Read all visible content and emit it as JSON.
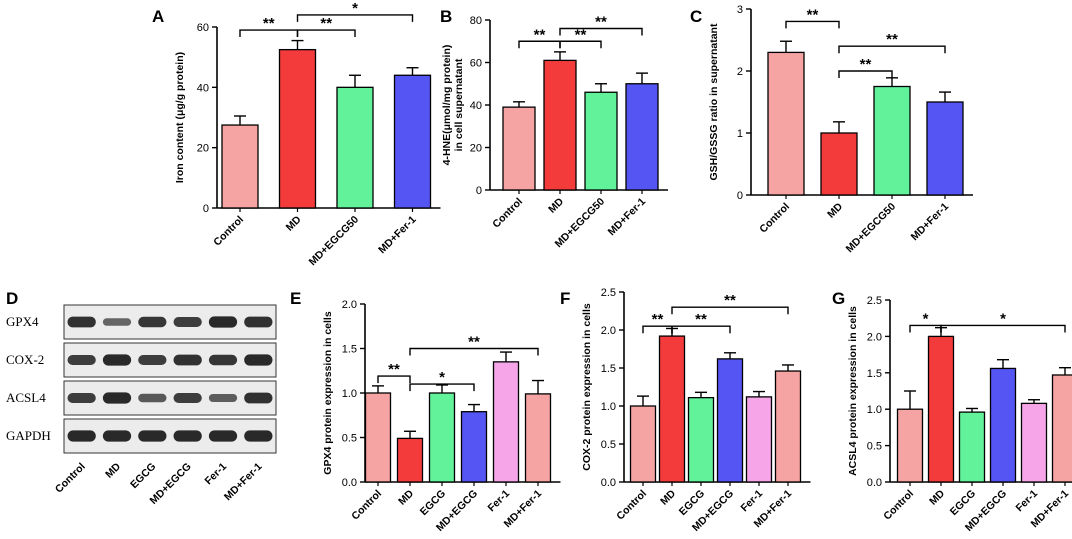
{
  "colors": {
    "Control": "#f6a3a3",
    "MD": "#f43b3b",
    "EGCG": "#62f29a",
    "MD+EGCG50": "#62f29a",
    "MD+EGCG": "#5455f2",
    "Fer-1": "#f6a6e8",
    "MD+Fer-1": "#5455f2",
    "MD+Fer-1 (6-group)": "#f6a3a3"
  },
  "chart_data": [
    {
      "id": "A",
      "type": "bar",
      "panel_label": "A",
      "categories": [
        "Control",
        "MD",
        "MD+EGCG50",
        "MD+Fer-1"
      ],
      "values": [
        27.5,
        52.5,
        40,
        44
      ],
      "errors": [
        3,
        3,
        4,
        2.5
      ],
      "bar_colors": [
        "#f6a3a3",
        "#f43b3b",
        "#62f29a",
        "#5455f2"
      ],
      "ylabel": "Iron content (μg/g protein)",
      "ylim": [
        0,
        60
      ],
      "yticks": [
        0,
        20,
        40,
        60
      ],
      "significance": [
        {
          "from": 0,
          "to": 1,
          "label": "**",
          "y": 59
        },
        {
          "from": 1,
          "to": 2,
          "label": "**",
          "y": 59
        },
        {
          "from": 1,
          "to": 3,
          "label": "*",
          "y": 64
        }
      ]
    },
    {
      "id": "B",
      "type": "bar",
      "panel_label": "B",
      "categories": [
        "Control",
        "MD",
        "MD+EGCG50",
        "MD+Fer-1"
      ],
      "values": [
        39,
        61,
        46,
        50
      ],
      "errors": [
        2.5,
        4,
        4,
        5
      ],
      "bar_colors": [
        "#f6a3a3",
        "#f43b3b",
        "#62f29a",
        "#5455f2"
      ],
      "ylabel": "4-HNE(μmol/mg protein)\nin cell supernatant",
      "ylim": [
        0,
        80
      ],
      "yticks": [
        0,
        20,
        40,
        60,
        80
      ],
      "significance": [
        {
          "from": 0,
          "to": 1,
          "label": "**",
          "y": 70
        },
        {
          "from": 1,
          "to": 2,
          "label": "**",
          "y": 70
        },
        {
          "from": 1,
          "to": 3,
          "label": "**",
          "y": 76
        }
      ]
    },
    {
      "id": "C",
      "type": "bar",
      "panel_label": "C",
      "categories": [
        "Control",
        "MD",
        "MD+EGCG50",
        "MD+Fer-1"
      ],
      "values": [
        2.3,
        1.0,
        1.75,
        1.5
      ],
      "errors": [
        0.18,
        0.18,
        0.14,
        0.16
      ],
      "bar_colors": [
        "#f6a3a3",
        "#f43b3b",
        "#62f29a",
        "#5455f2"
      ],
      "ylabel": "GSH/GSSG ratio in supernatant",
      "ylim": [
        0,
        3
      ],
      "yticks": [
        0,
        1,
        2,
        3
      ],
      "significance": [
        {
          "from": 0,
          "to": 1,
          "label": "**",
          "y": 2.8
        },
        {
          "from": 1,
          "to": 2,
          "label": "**",
          "y": 2.0
        },
        {
          "from": 1,
          "to": 3,
          "label": "**",
          "y": 2.4
        }
      ]
    },
    {
      "id": "E",
      "type": "bar",
      "panel_label": "E",
      "categories": [
        "Control",
        "MD",
        "EGCG",
        "MD+EGCG",
        "Fer-1",
        "MD+Fer-1"
      ],
      "values": [
        1.0,
        0.49,
        1.0,
        0.79,
        1.35,
        0.99
      ],
      "errors": [
        0.08,
        0.08,
        0.09,
        0.08,
        0.11,
        0.15
      ],
      "bar_colors": [
        "#f6a3a3",
        "#f43b3b",
        "#62f29a",
        "#5455f2",
        "#f6a6e8",
        "#f6a3a3"
      ],
      "ylabel": "GPX4 protein expression in cells",
      "ylim": [
        0,
        2.0
      ],
      "yticks": [
        0.0,
        0.5,
        1.0,
        1.5,
        2.0
      ],
      "tick_format": 1,
      "significance": [
        {
          "from": 0,
          "to": 1,
          "label": "**",
          "y": 1.19
        },
        {
          "from": 1,
          "to": 3,
          "label": "*",
          "y": 1.1
        },
        {
          "from": 1,
          "to": 5,
          "label": "**",
          "y": 1.5
        }
      ]
    },
    {
      "id": "F",
      "type": "bar",
      "panel_label": "F",
      "categories": [
        "Control",
        "MD",
        "EGCG",
        "MD+EGCG",
        "Fer-1",
        "MD+Fer-1"
      ],
      "values": [
        1.0,
        1.92,
        1.11,
        1.62,
        1.12,
        1.46
      ],
      "errors": [
        0.13,
        0.1,
        0.07,
        0.08,
        0.07,
        0.08
      ],
      "bar_colors": [
        "#f6a3a3",
        "#f43b3b",
        "#62f29a",
        "#5455f2",
        "#f6a6e8",
        "#f6a3a3"
      ],
      "ylabel": "COX-2 protein expression in cells",
      "ylim": [
        0,
        2.5
      ],
      "yticks": [
        0.0,
        0.5,
        1.0,
        1.5,
        2.0,
        2.5
      ],
      "tick_format": 1,
      "significance": [
        {
          "from": 0,
          "to": 1,
          "label": "**",
          "y": 2.05
        },
        {
          "from": 1,
          "to": 3,
          "label": "**",
          "y": 2.05
        },
        {
          "from": 1,
          "to": 5,
          "label": "**",
          "y": 2.3
        }
      ]
    },
    {
      "id": "G",
      "type": "bar",
      "panel_label": "G",
      "categories": [
        "Control",
        "MD",
        "EGCG",
        "MD+EGCG",
        "Fer-1",
        "MD+Fer-1"
      ],
      "values": [
        1.0,
        2.0,
        0.96,
        1.56,
        1.08,
        1.47
      ],
      "errors": [
        0.25,
        0.12,
        0.05,
        0.12,
        0.05,
        0.1
      ],
      "bar_colors": [
        "#f6a3a3",
        "#f43b3b",
        "#62f29a",
        "#5455f2",
        "#f6a6e8",
        "#f6a3a3"
      ],
      "ylabel": "ACSL4 protein expression in cells",
      "ylim": [
        0,
        2.5
      ],
      "yticks": [
        0.0,
        0.5,
        1.0,
        1.5,
        2.0,
        2.5
      ],
      "tick_format": 1,
      "significance": [
        {
          "from": 0,
          "to": 1,
          "label": "*",
          "y": 2.15
        },
        {
          "from": 1,
          "to": 5,
          "label": "*",
          "y": 2.15
        }
      ]
    }
  ],
  "western_blot": {
    "panel_label": "D",
    "lanes": [
      "Control",
      "MD",
      "EGCG",
      "MD+EGCG",
      "Fer-1",
      "MD+Fer-1"
    ],
    "proteins": [
      {
        "name": "GPX4",
        "intensity": [
          0.85,
          0.45,
          0.8,
          0.75,
          0.9,
          0.85
        ]
      },
      {
        "name": "COX-2",
        "intensity": [
          0.75,
          0.9,
          0.75,
          0.85,
          0.8,
          0.9
        ]
      },
      {
        "name": "ACSL4",
        "intensity": [
          0.75,
          0.9,
          0.55,
          0.75,
          0.5,
          0.85
        ]
      },
      {
        "name": "GAPDH",
        "intensity": [
          0.9,
          0.9,
          0.9,
          0.9,
          0.9,
          0.9
        ]
      }
    ]
  }
}
